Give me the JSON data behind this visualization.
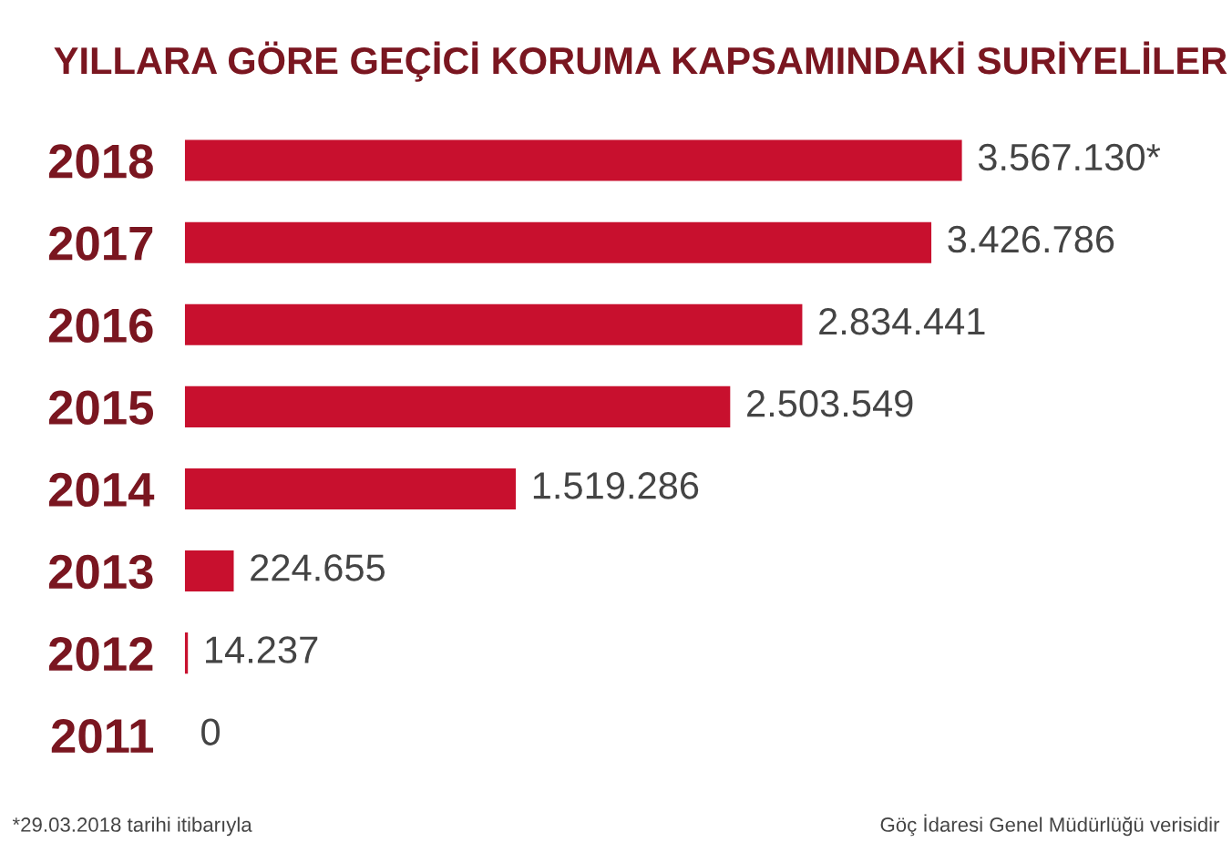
{
  "chart_data": {
    "type": "bar",
    "orientation": "horizontal",
    "title": "YILLARA GÖRE GEÇİCİ KORUMA KAPSAMINDAKİ SURİYELİLER",
    "categories": [
      "2018",
      "2017",
      "2016",
      "2015",
      "2014",
      "2013",
      "2012",
      "2011"
    ],
    "values": [
      3567130,
      3426786,
      2834441,
      2503549,
      1519286,
      224655,
      14237,
      0
    ],
    "value_labels": [
      "3.567.130*",
      "3.426.786",
      "2.834.441",
      "2.503.549",
      "1.519.286",
      "224.655",
      "14.237",
      "0"
    ],
    "color": "#c8102e",
    "annotations": [
      "*29.03.2018 tarihi itibarıyla",
      "Göç İdaresi Genel Müdürlüğü verisidir"
    ]
  }
}
